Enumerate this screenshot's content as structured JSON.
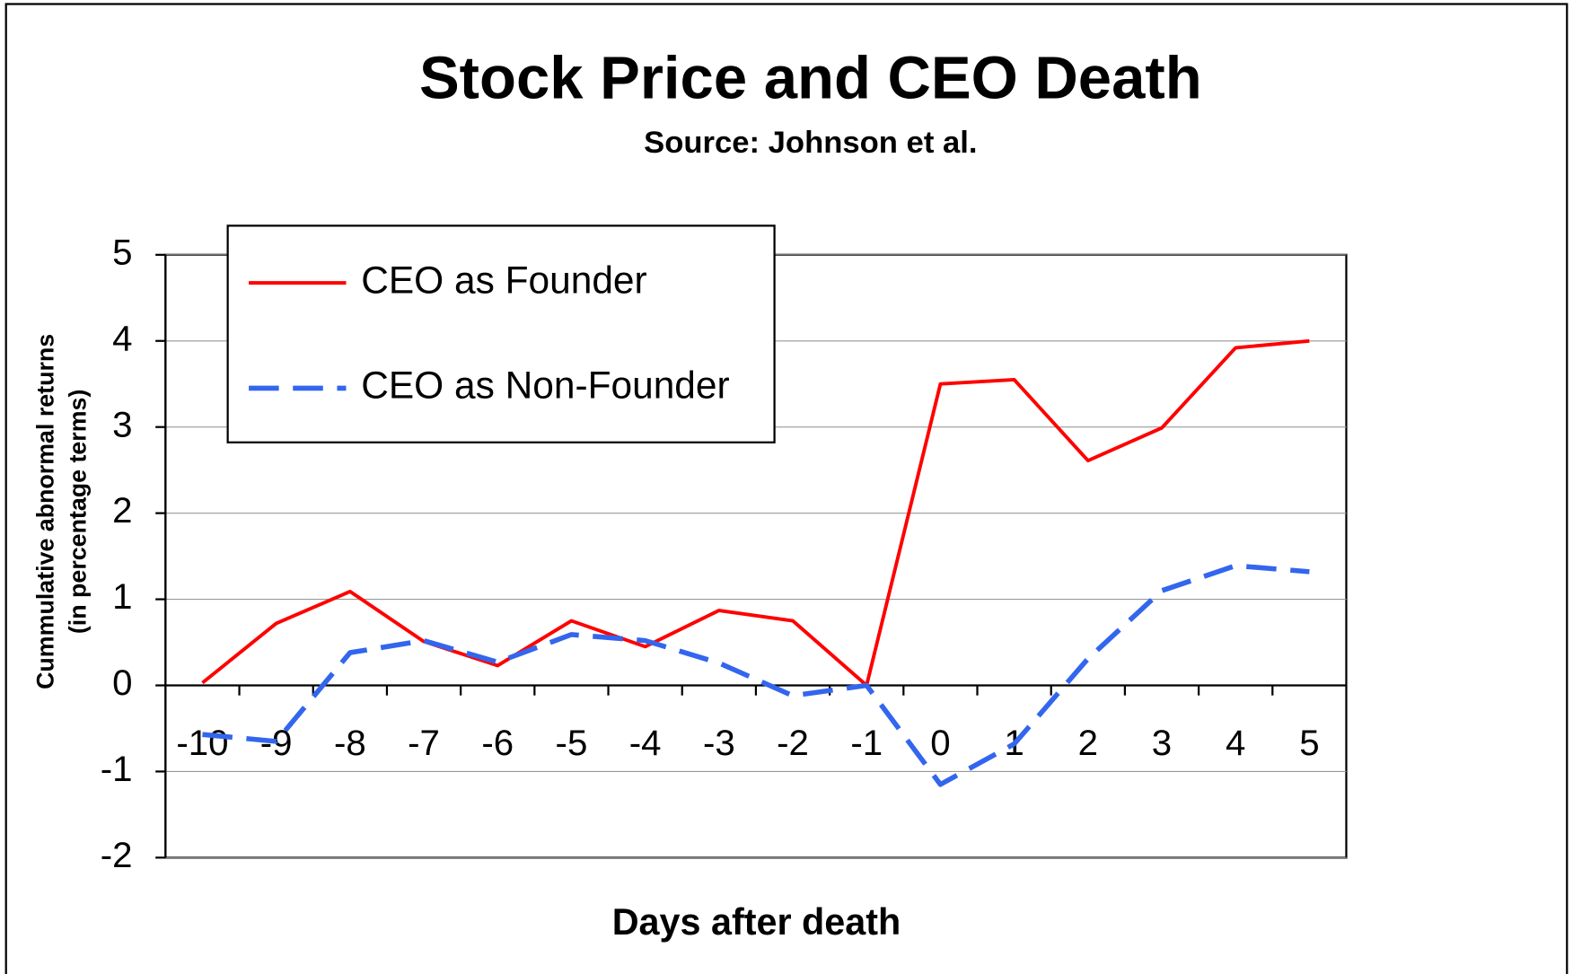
{
  "chart_data": {
    "type": "line",
    "title": "Stock Price and CEO Death",
    "subtitle": "Source: Johnson et al.",
    "x_label": "Days after death",
    "y_label": [
      "Cummulative abnormal returns",
      "(in percentage terms)"
    ],
    "categories": [
      "-10",
      "-9",
      "-8",
      "-7",
      "-6",
      "-5",
      "-4",
      "-3",
      "-2",
      "-1",
      "0",
      "1",
      "2",
      "3",
      "4",
      "5"
    ],
    "series": [
      {
        "name": "CEO as Founder",
        "color": "#ff0000",
        "dash": false,
        "values": [
          0.03,
          0.72,
          1.09,
          0.51,
          0.23,
          0.75,
          0.45,
          0.87,
          0.75,
          0,
          3.5,
          3.55,
          2.61,
          2.99,
          3.92,
          4.0
        ]
      },
      {
        "name": "CEO as Non-Founder",
        "color": "#3366ee",
        "dash": true,
        "values": [
          -0.57,
          -0.65,
          0.38,
          0.52,
          0.27,
          0.59,
          0.52,
          0.26,
          -0.12,
          0,
          -1.15,
          -0.68,
          0.31,
          1.1,
          1.39,
          1.32
        ]
      }
    ],
    "ylim": [
      -2,
      5
    ],
    "yticks": [
      -2,
      -1,
      0,
      1,
      2,
      3,
      4,
      5
    ],
    "grid": true,
    "legend": "upper left"
  }
}
